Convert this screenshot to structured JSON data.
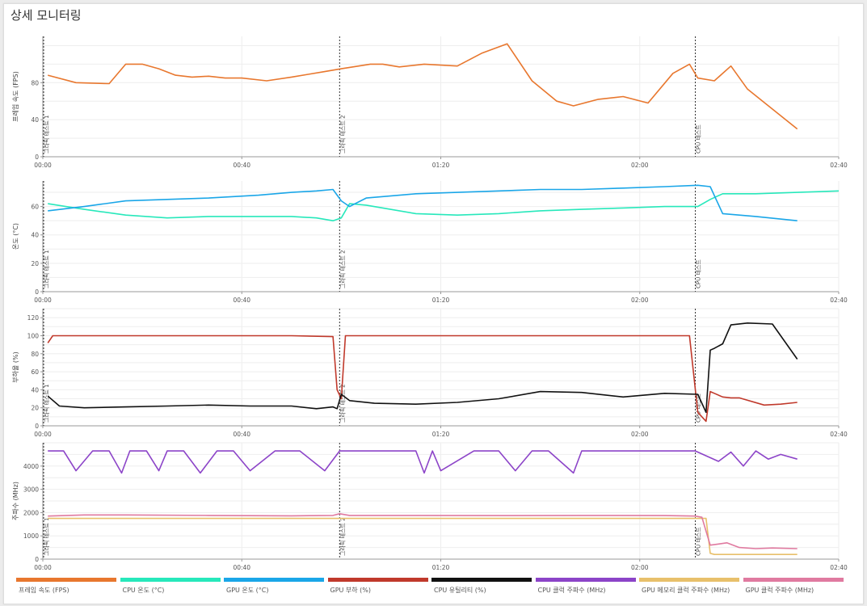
{
  "page": {
    "title": "상세 모니터링"
  },
  "markers": [
    {
      "label": "그라픽 테스트 1",
      "t": 0
    },
    {
      "label": "그라픽 테스트 2",
      "t": 3580
    },
    {
      "label": "CPU 테스트",
      "t": 7870
    }
  ],
  "x_ticks": [
    "00:00",
    "00:40",
    "01:20",
    "02:00",
    "02:40"
  ],
  "chart_data": [
    {
      "type": "line",
      "ylabel": "프레임 속도 (FPS)",
      "yticks": [
        0,
        40,
        80
      ],
      "ylim": [
        0,
        130
      ],
      "xlim": [
        0,
        9600
      ],
      "series": [
        {
          "name": "프레임 속도 (FPS)",
          "color": "#e8772e",
          "x": [
            60,
            400,
            800,
            1000,
            1200,
            1400,
            1600,
            1800,
            2000,
            2200,
            2400,
            2700,
            3000,
            3200,
            3400,
            3600,
            3950,
            4100,
            4300,
            4600,
            5000,
            5300,
            5600,
            5900,
            6200,
            6400,
            6700,
            7000,
            7300,
            7600,
            7800,
            7900,
            8100,
            8300,
            8500,
            9100
          ],
          "y": [
            88,
            80,
            79,
            100,
            100,
            95,
            88,
            86,
            87,
            85,
            85,
            82,
            86,
            89,
            92,
            95,
            100,
            100,
            97,
            100,
            98,
            112,
            122,
            82,
            60,
            55,
            62,
            65,
            58,
            90,
            100,
            85,
            82,
            98,
            73,
            30
          ]
        }
      ]
    },
    {
      "type": "line",
      "ylabel": "온도 (°C)",
      "yticks": [
        0,
        20,
        40,
        60
      ],
      "ylim": [
        0,
        78
      ],
      "xlim": [
        0,
        9600
      ],
      "series": [
        {
          "name": "CPU 온도 (°C)",
          "color": "#27e8bb",
          "x": [
            60,
            500,
            1000,
            1500,
            2000,
            2600,
            3000,
            3300,
            3500,
            3600,
            3700,
            3900,
            4500,
            5000,
            5500,
            6000,
            6500,
            7000,
            7500,
            7900,
            8050,
            8200,
            8600,
            9100,
            9600
          ],
          "y": [
            62,
            58,
            54,
            52,
            53,
            53,
            53,
            52,
            50,
            52,
            62,
            61,
            55,
            54,
            55,
            57,
            58,
            59,
            60,
            60,
            65,
            69,
            69,
            70,
            71
          ],
          "clip_to": 9600
        },
        {
          "name": "GPU 온도 (°C)",
          "color": "#1aa6e8",
          "x": [
            60,
            500,
            1000,
            1500,
            2000,
            2600,
            3000,
            3300,
            3500,
            3600,
            3700,
            3900,
            4500,
            5000,
            5500,
            6000,
            6500,
            7000,
            7500,
            7900,
            8050,
            8200,
            8600,
            9100
          ],
          "y": [
            57,
            60,
            64,
            65,
            66,
            68,
            70,
            71,
            72,
            64,
            60,
            66,
            69,
            70,
            71,
            72,
            72,
            73,
            74,
            75,
            74,
            55,
            53,
            50
          ]
        }
      ]
    },
    {
      "type": "line",
      "ylabel": "부하율 (%)",
      "yticks": [
        0,
        20,
        40,
        60,
        80,
        100,
        120
      ],
      "ylim": [
        0,
        130
      ],
      "xlim": [
        0,
        9600
      ],
      "series": [
        {
          "name": "GPU 부하 (%)",
          "color": "#c0392b",
          "x": [
            60,
            120,
            3000,
            3500,
            3550,
            3600,
            3650,
            4000,
            7000,
            7400,
            7800,
            7900,
            8000,
            8050,
            8100,
            8200,
            8300,
            8400,
            8700,
            8900,
            9100
          ],
          "y": [
            92,
            100,
            100,
            99,
            40,
            30,
            100,
            100,
            100,
            100,
            100,
            15,
            5,
            38,
            36,
            32,
            31,
            31,
            23,
            24,
            26
          ]
        },
        {
          "name": "CPU 유틸리티 (%)",
          "color": "#111111",
          "x": [
            60,
            200,
            500,
            1000,
            1500,
            2000,
            2500,
            3000,
            3300,
            3500,
            3550,
            3600,
            3700,
            4000,
            4500,
            5000,
            5500,
            6000,
            6500,
            7000,
            7500,
            7900,
            8000,
            8050,
            8100,
            8200,
            8300,
            8500,
            8800,
            9100
          ],
          "y": [
            33,
            22,
            20,
            21,
            22,
            23,
            22,
            22,
            19,
            21,
            19,
            35,
            28,
            25,
            24,
            26,
            30,
            38,
            37,
            32,
            36,
            35,
            15,
            84,
            86,
            91,
            112,
            114,
            113,
            74
          ]
        }
      ]
    },
    {
      "type": "line",
      "ylabel": "주파수 (MHz)",
      "yticks": [
        0,
        1000,
        2000,
        3000,
        4000
      ],
      "ylim": [
        0,
        5000
      ],
      "xlim": [
        0,
        9600
      ],
      "series": [
        {
          "name": "CPU 클럭 주파수 (MHz)",
          "color": "#8c44c8",
          "x": [
            60,
            250,
            400,
            600,
            800,
            950,
            1050,
            1250,
            1400,
            1500,
            1700,
            1900,
            2100,
            2300,
            2500,
            2800,
            3100,
            3400,
            3580,
            4000,
            4500,
            4600,
            4700,
            4800,
            5200,
            5500,
            5700,
            5900,
            6100,
            6400,
            6500,
            6600,
            6800,
            7200,
            7600,
            7870,
            8150,
            8300,
            8450,
            8600,
            8750,
            8900,
            9100
          ],
          "y": [
            4650,
            4650,
            3800,
            4650,
            4650,
            3700,
            4650,
            4650,
            3800,
            4650,
            4650,
            3700,
            4650,
            4650,
            3800,
            4650,
            4650,
            3800,
            4650,
            4650,
            4650,
            3700,
            4650,
            3800,
            4650,
            4650,
            3800,
            4650,
            4650,
            3700,
            4650,
            4650,
            4650,
            4650,
            4650,
            4650,
            4200,
            4600,
            4000,
            4650,
            4300,
            4500,
            4300
          ]
        },
        {
          "name": "GPU 메모리 클럭 주파수 (MHz)",
          "color": "#e8c06b",
          "x": [
            60,
            3580,
            7870,
            8000,
            8050,
            8100,
            8300,
            9100
          ],
          "y": [
            1750,
            1750,
            1750,
            1750,
            250,
            200,
            200,
            200
          ]
        },
        {
          "name": "GPU 클럭 주파수 (MHz)",
          "color": "#e07aa0",
          "x": [
            60,
            500,
            1000,
            2000,
            3000,
            3500,
            3580,
            3700,
            4500,
            5500,
            6500,
            7500,
            7870,
            7950,
            8000,
            8050,
            8150,
            8250,
            8400,
            8600,
            8800,
            9100
          ],
          "y": [
            1850,
            1900,
            1900,
            1880,
            1860,
            1880,
            1950,
            1880,
            1880,
            1870,
            1880,
            1870,
            1850,
            1800,
            1200,
            600,
            650,
            700,
            500,
            450,
            480,
            450
          ]
        }
      ]
    }
  ],
  "legend": [
    {
      "label": "프레임 속도 (FPS)",
      "color": "#e8772e"
    },
    {
      "label": "CPU 온도 (°C)",
      "color": "#27e8bb"
    },
    {
      "label": "GPU 온도 (°C)",
      "color": "#1aa6e8"
    },
    {
      "label": "GPU 부하 (%)",
      "color": "#c0392b"
    },
    {
      "label": "CPU 유틸리티 (%)",
      "color": "#111111"
    },
    {
      "label": "CPU 클럭 주파수 (MHz)",
      "color": "#8c44c8"
    },
    {
      "label": "GPU 메모리 클럭 주파수 (MHz)",
      "color": "#e8c06b"
    },
    {
      "label": "GPU 클럭 주파수 (MHz)",
      "color": "#e07aa0"
    }
  ]
}
